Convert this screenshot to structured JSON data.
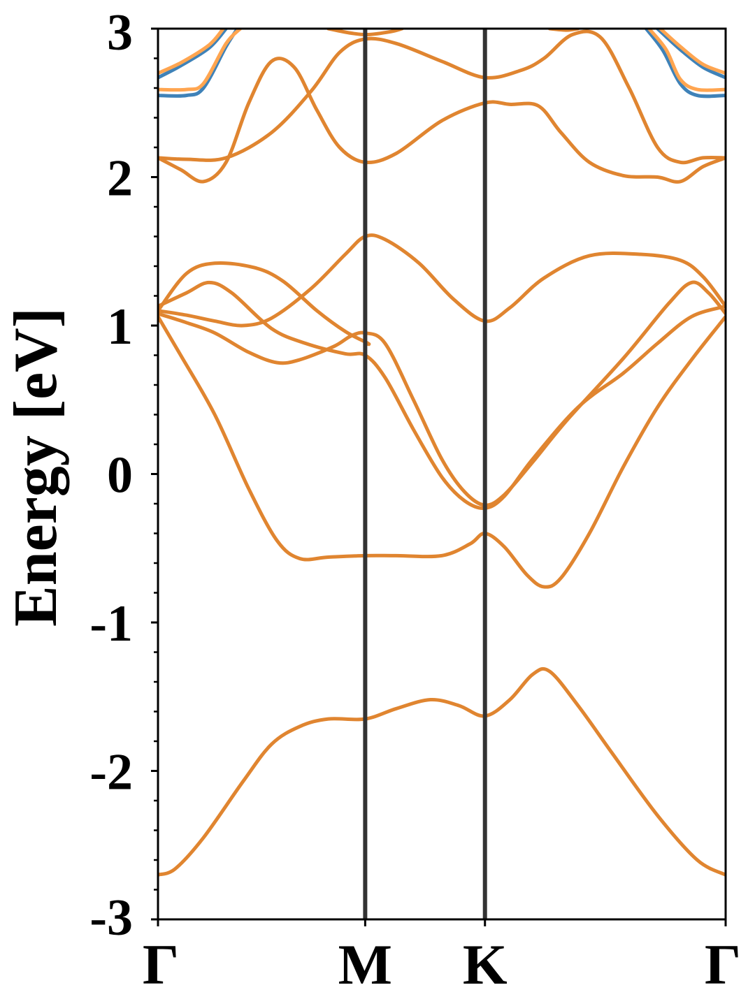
{
  "chart_data": {
    "type": "line",
    "title": "",
    "xlabel": "",
    "ylabel": "Energy [eV]",
    "ylim": [
      -3,
      3
    ],
    "xlim": [
      0,
      1
    ],
    "x_ticks": [
      {
        "pos": 0.0,
        "label": "Γ"
      },
      {
        "pos": 0.365,
        "label": "M"
      },
      {
        "pos": 0.576,
        "label": "K"
      },
      {
        "pos": 1.0,
        "label": "Γ"
      }
    ],
    "y_ticks": [
      {
        "value": 3,
        "label": "3"
      },
      {
        "value": 2,
        "label": "2"
      },
      {
        "value": 1,
        "label": "1"
      },
      {
        "value": 0,
        "label": "0"
      },
      {
        "value": -1,
        "label": "-1"
      },
      {
        "value": -2,
        "label": "-2"
      },
      {
        "value": -3,
        "label": "-3"
      }
    ],
    "y_minor_step": 0.2,
    "grid": false,
    "vlines_at": [
      0.365,
      0.576
    ],
    "colors": {
      "blue": "#3f82b8",
      "orange": "#e08530",
      "light_orange": "#ffa550",
      "vline": "#333333"
    },
    "series": [
      {
        "color": "orange",
        "points": [
          [
            0.0,
            -2.7
          ],
          [
            0.03,
            -2.66
          ],
          [
            0.08,
            -2.45
          ],
          [
            0.15,
            -2.07
          ],
          [
            0.2,
            -1.82
          ],
          [
            0.25,
            -1.7
          ],
          [
            0.3,
            -1.65
          ],
          [
            0.365,
            -1.65
          ],
          [
            0.42,
            -1.58
          ],
          [
            0.48,
            -1.52
          ],
          [
            0.53,
            -1.56
          ],
          [
            0.576,
            -1.63
          ],
          [
            0.62,
            -1.52
          ],
          [
            0.66,
            -1.35
          ],
          [
            0.69,
            -1.33
          ],
          [
            0.74,
            -1.56
          ],
          [
            0.8,
            -1.88
          ],
          [
            0.88,
            -2.3
          ],
          [
            0.95,
            -2.6
          ],
          [
            1.0,
            -2.7
          ]
        ]
      },
      {
        "color": "orange",
        "points": [
          [
            0.0,
            1.06
          ],
          [
            0.04,
            0.8
          ],
          [
            0.1,
            0.4
          ],
          [
            0.16,
            -0.1
          ],
          [
            0.21,
            -0.45
          ],
          [
            0.25,
            -0.57
          ],
          [
            0.3,
            -0.56
          ],
          [
            0.365,
            -0.55
          ],
          [
            0.42,
            -0.55
          ],
          [
            0.5,
            -0.55
          ],
          [
            0.55,
            -0.47
          ],
          [
            0.576,
            -0.4
          ],
          [
            0.61,
            -0.49
          ],
          [
            0.65,
            -0.68
          ],
          [
            0.68,
            -0.76
          ],
          [
            0.71,
            -0.7
          ],
          [
            0.76,
            -0.4
          ],
          [
            0.82,
            0.05
          ],
          [
            0.88,
            0.45
          ],
          [
            0.94,
            0.77
          ],
          [
            1.0,
            1.06
          ]
        ]
      },
      {
        "color": "orange",
        "points": [
          [
            0.0,
            1.08
          ],
          [
            0.05,
            1.02
          ],
          [
            0.1,
            0.95
          ],
          [
            0.16,
            0.82
          ],
          [
            0.21,
            0.75
          ],
          [
            0.25,
            0.77
          ],
          [
            0.31,
            0.86
          ],
          [
            0.34,
            0.93
          ],
          [
            0.365,
            0.95
          ],
          [
            0.4,
            0.88
          ],
          [
            0.45,
            0.5
          ],
          [
            0.5,
            0.1
          ],
          [
            0.54,
            -0.12
          ],
          [
            0.576,
            -0.21
          ],
          [
            0.61,
            -0.14
          ],
          [
            0.66,
            0.08
          ],
          [
            0.72,
            0.36
          ],
          [
            0.82,
            0.78
          ],
          [
            0.9,
            1.15
          ],
          [
            0.94,
            1.29
          ],
          [
            0.97,
            1.22
          ],
          [
            1.0,
            1.08
          ]
        ]
      },
      {
        "color": "orange",
        "points": [
          [
            0.0,
            1.13
          ],
          [
            0.05,
            1.22
          ],
          [
            0.09,
            1.29
          ],
          [
            0.13,
            1.22
          ],
          [
            0.2,
            0.98
          ],
          [
            0.26,
            0.88
          ],
          [
            0.33,
            0.81
          ],
          [
            0.365,
            0.8
          ],
          [
            0.4,
            0.65
          ],
          [
            0.45,
            0.3
          ],
          [
            0.5,
            -0.02
          ],
          [
            0.54,
            -0.18
          ],
          [
            0.576,
            -0.23
          ],
          [
            0.61,
            -0.15
          ],
          [
            0.66,
            0.1
          ],
          [
            0.74,
            0.45
          ],
          [
            0.82,
            0.68
          ],
          [
            0.88,
            0.88
          ],
          [
            0.94,
            1.06
          ],
          [
            1.0,
            1.13
          ]
        ]
      },
      {
        "color": "orange",
        "points": [
          [
            0.0,
            1.1
          ],
          [
            0.05,
            1.35
          ],
          [
            0.1,
            1.42
          ],
          [
            0.17,
            1.39
          ],
          [
            0.22,
            1.3
          ],
          [
            0.28,
            1.1
          ],
          [
            0.33,
            0.96
          ],
          [
            0.37,
            0.88
          ],
          [
            0.365,
            0.88
          ]
        ]
      },
      {
        "color": "orange",
        "points": [
          [
            0.0,
            1.1
          ],
          [
            0.05,
            1.07
          ],
          [
            0.1,
            1.03
          ],
          [
            0.15,
            1.0
          ],
          [
            0.2,
            1.05
          ],
          [
            0.27,
            1.25
          ],
          [
            0.33,
            1.48
          ],
          [
            0.365,
            1.6
          ],
          [
            0.4,
            1.58
          ],
          [
            0.46,
            1.42
          ],
          [
            0.52,
            1.18
          ],
          [
            0.576,
            1.03
          ],
          [
            0.62,
            1.12
          ],
          [
            0.68,
            1.32
          ],
          [
            0.76,
            1.47
          ],
          [
            0.85,
            1.48
          ],
          [
            0.92,
            1.44
          ],
          [
            0.96,
            1.33
          ],
          [
            1.0,
            1.13
          ]
        ]
      },
      {
        "color": "orange",
        "points": [
          [
            0.0,
            2.13
          ],
          [
            0.04,
            2.05
          ],
          [
            0.08,
            1.97
          ],
          [
            0.12,
            2.1
          ],
          [
            0.16,
            2.5
          ],
          [
            0.2,
            2.78
          ],
          [
            0.24,
            2.74
          ],
          [
            0.28,
            2.45
          ],
          [
            0.32,
            2.2
          ],
          [
            0.365,
            2.1
          ],
          [
            0.42,
            2.16
          ],
          [
            0.5,
            2.38
          ],
          [
            0.576,
            2.5
          ],
          [
            0.62,
            2.49
          ],
          [
            0.67,
            2.48
          ],
          [
            0.71,
            2.3
          ],
          [
            0.76,
            2.1
          ],
          [
            0.82,
            2.01
          ],
          [
            0.88,
            2.0
          ],
          [
            0.92,
            1.97
          ],
          [
            0.96,
            2.07
          ],
          [
            1.0,
            2.13
          ]
        ]
      },
      {
        "color": "orange",
        "points": [
          [
            0.0,
            2.13
          ],
          [
            0.05,
            2.12
          ],
          [
            0.12,
            2.13
          ],
          [
            0.2,
            2.3
          ],
          [
            0.27,
            2.58
          ],
          [
            0.32,
            2.84
          ],
          [
            0.365,
            2.93
          ],
          [
            0.42,
            2.9
          ],
          [
            0.5,
            2.78
          ],
          [
            0.576,
            2.67
          ],
          [
            0.64,
            2.72
          ],
          [
            0.68,
            2.8
          ],
          [
            0.73,
            2.96
          ],
          [
            0.78,
            2.94
          ],
          [
            0.83,
            2.6
          ],
          [
            0.88,
            2.2
          ],
          [
            0.92,
            2.1
          ],
          [
            0.96,
            2.13
          ],
          [
            1.0,
            2.13
          ]
        ]
      },
      {
        "color": "orange",
        "points": [
          [
            0.3,
            3.0
          ],
          [
            0.34,
            2.97
          ],
          [
            0.37,
            2.96
          ],
          [
            0.41,
            2.98
          ],
          [
            0.43,
            3.0
          ]
        ]
      },
      {
        "color": "orange",
        "points": [
          [
            0.69,
            3.0
          ],
          [
            0.72,
            2.99
          ],
          [
            0.74,
            3.0
          ]
        ]
      },
      {
        "color": "blue",
        "points": [
          [
            0.0,
            2.55
          ],
          [
            0.05,
            2.55
          ],
          [
            0.08,
            2.6
          ],
          [
            0.12,
            2.88
          ],
          [
            0.14,
            3.0
          ]
        ]
      },
      {
        "color": "blue",
        "points": [
          [
            0.0,
            2.67
          ],
          [
            0.04,
            2.75
          ],
          [
            0.09,
            2.87
          ],
          [
            0.12,
            3.0
          ]
        ]
      },
      {
        "color": "blue",
        "points": [
          [
            0.86,
            3.0
          ],
          [
            0.89,
            2.85
          ],
          [
            0.92,
            2.63
          ],
          [
            0.95,
            2.55
          ],
          [
            1.0,
            2.55
          ]
        ]
      },
      {
        "color": "blue",
        "points": [
          [
            0.88,
            3.0
          ],
          [
            0.92,
            2.86
          ],
          [
            0.96,
            2.74
          ],
          [
            1.0,
            2.67
          ]
        ]
      },
      {
        "color": "light_orange",
        "points": [
          [
            0.0,
            2.59
          ],
          [
            0.05,
            2.59
          ],
          [
            0.08,
            2.63
          ],
          [
            0.12,
            2.9
          ],
          [
            0.145,
            3.0
          ]
        ]
      },
      {
        "color": "light_orange",
        "points": [
          [
            0.0,
            2.7
          ],
          [
            0.04,
            2.77
          ],
          [
            0.09,
            2.89
          ],
          [
            0.115,
            3.0
          ]
        ]
      },
      {
        "color": "light_orange",
        "points": [
          [
            0.865,
            3.0
          ],
          [
            0.895,
            2.86
          ],
          [
            0.92,
            2.66
          ],
          [
            0.95,
            2.59
          ],
          [
            1.0,
            2.59
          ]
        ]
      },
      {
        "color": "light_orange",
        "points": [
          [
            0.885,
            3.0
          ],
          [
            0.92,
            2.88
          ],
          [
            0.96,
            2.76
          ],
          [
            1.0,
            2.7
          ]
        ]
      }
    ]
  }
}
